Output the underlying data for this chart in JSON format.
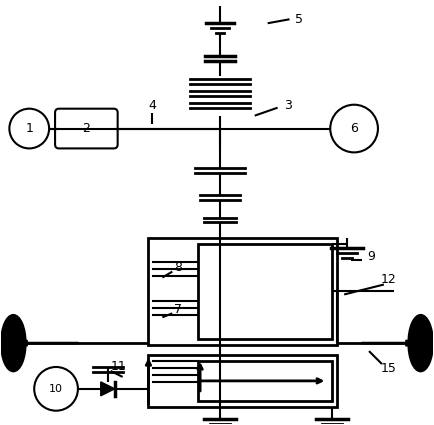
{
  "bg_color": "#ffffff",
  "lc": "#000000",
  "lw": 1.5,
  "lw2": 2.0,
  "fig_w": 4.34,
  "fig_h": 4.25,
  "dpi": 100
}
